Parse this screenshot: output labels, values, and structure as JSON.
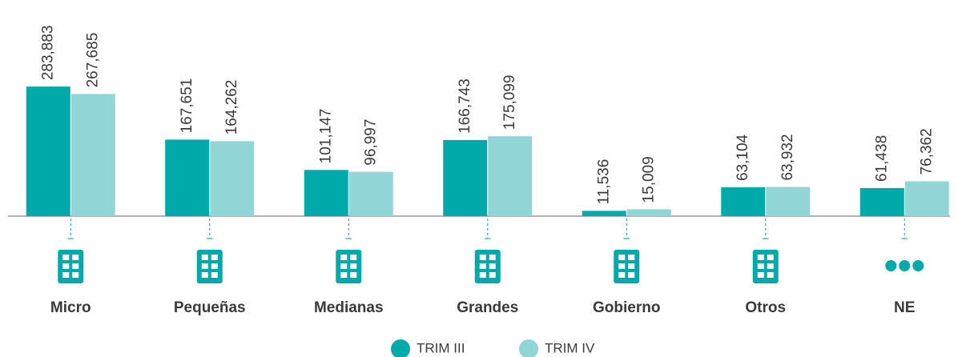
{
  "chart_data": {
    "type": "bar",
    "categories": [
      "Micro",
      "Pequeñas",
      "Medianas",
      "Grandes",
      "Gobierno",
      "Otros",
      "NE"
    ],
    "series": [
      {
        "name": "TRIM III",
        "color": "#00a9aa",
        "values": [
          283883,
          167651,
          101147,
          166743,
          11536,
          63104,
          61438
        ],
        "value_labels": [
          "283,883",
          "167,651",
          "101,147",
          "166,743",
          "11,536",
          "63,104",
          "61,438"
        ]
      },
      {
        "name": "TRIM IV",
        "color": "#92d5d6",
        "values": [
          267685,
          164262,
          96997,
          175099,
          15009,
          63932,
          76362
        ],
        "value_labels": [
          "267,685",
          "164,262",
          "96,997",
          "175,099",
          "15,009",
          "63,932",
          "76,362"
        ]
      }
    ],
    "ylim": [
      0,
      300000
    ],
    "legend": "bottom"
  }
}
